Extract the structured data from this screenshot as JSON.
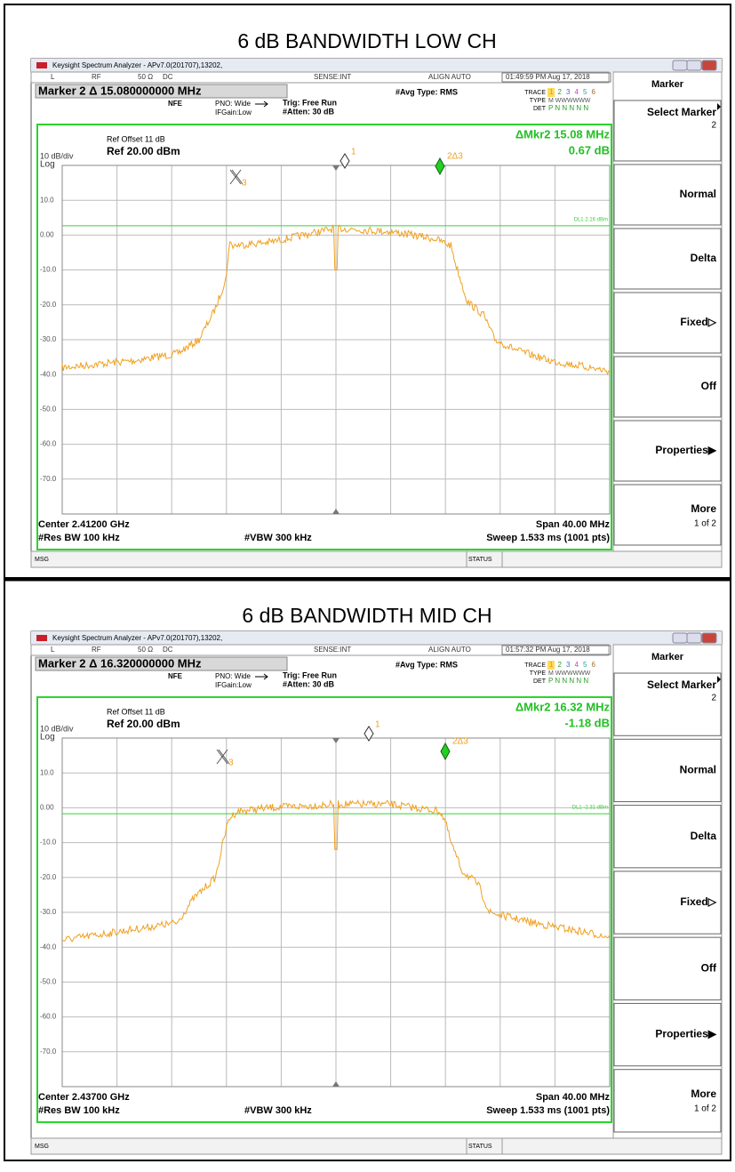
{
  "panels": [
    {
      "title": "6 dB BANDWIDTH LOW CH",
      "window_title": "Keysight Spectrum Analyzer - APv7.0(201707),13202,",
      "status_bar": [
        "L",
        "RF",
        "50 Ω",
        "DC",
        "SENSE:INT",
        "ALIGN AUTO",
        "01:49:59 PM Aug 17, 2018"
      ],
      "marker_readout": "Marker 2 Δ 15.080000000 MHz",
      "nfe": "NFE",
      "pno": "PNO: Wide",
      "ifgain": "IFGain:Low",
      "trig": "Trig: Free Run",
      "atten": "#Atten: 30 dB",
      "avg_type": "#Avg Type: RMS",
      "trace_info": {
        "trace_label": "TRACE",
        "trace_numbers": [
          "1",
          "2",
          "3",
          "4",
          "5",
          "6"
        ],
        "type_label": "TYPE",
        "type_value": "M WWWWWW",
        "det_label": "DET",
        "det_value": "P N N N N N"
      },
      "ref_offset": "Ref Offset 11 dB",
      "ref_level": "Ref 20.00 dBm",
      "scale": "10 dB/div",
      "scale_type": "Log",
      "delta_marker_freq": "ΔMkr2 15.08 MHz",
      "delta_marker_amp": "0.67 dB",
      "y_labels": [
        "10.0",
        "0.00",
        "-10.0",
        "-20.0",
        "-30.0",
        "-40.0",
        "-50.0",
        "-60.0",
        "-70.0"
      ],
      "display_line": "DL1 2.16 dBm",
      "marker_labels": [
        "1",
        "2Δ3",
        "3"
      ],
      "center": "Center 2.41200 GHz",
      "span": "Span 40.00 MHz",
      "res_bw": "#Res BW 100 kHz",
      "vbw": "#VBW 300 kHz",
      "sweep": "Sweep  1.533 ms (1001 pts)",
      "msg": "MSG",
      "status": "STATUS",
      "softkeys": {
        "header": "Marker",
        "keys": [
          "Select Marker",
          "Normal",
          "Delta",
          "Fixed▷",
          "Off",
          "Properties▶",
          "More"
        ],
        "select_value": "2",
        "more_page": "1 of 2"
      }
    },
    {
      "title": "6 dB BANDWIDTH MID CH",
      "window_title": "Keysight Spectrum Analyzer - APv7.0(201707),13202,",
      "status_bar": [
        "L",
        "RF",
        "50 Ω",
        "DC",
        "SENSE:INT",
        "ALIGN AUTO",
        "01:57:32 PM Aug 17, 2018"
      ],
      "marker_readout": "Marker 2 Δ 16.320000000 MHz",
      "nfe": "NFE",
      "pno": "PNO: Wide",
      "ifgain": "IFGain:Low",
      "trig": "Trig: Free Run",
      "atten": "#Atten: 30 dB",
      "avg_type": "#Avg Type: RMS",
      "trace_info": {
        "trace_label": "TRACE",
        "trace_numbers": [
          "1",
          "2",
          "3",
          "4",
          "5",
          "6"
        ],
        "type_label": "TYPE",
        "type_value": "M WWWWWW",
        "det_label": "DET",
        "det_value": "P N N N N N"
      },
      "ref_offset": "Ref Offset 11 dB",
      "ref_level": "Ref 20.00 dBm",
      "scale": "10 dB/div",
      "scale_type": "Log",
      "delta_marker_freq": "ΔMkr2 16.32 MHz",
      "delta_marker_amp": "-1.18 dB",
      "y_labels": [
        "10.0",
        "0.00",
        "-10.0",
        "-20.0",
        "-30.0",
        "-40.0",
        "-50.0",
        "-60.0",
        "-70.0"
      ],
      "display_line": "DL1 -2.31 dBm",
      "marker_labels": [
        "1",
        "2Δ3",
        "3"
      ],
      "center": "Center 2.43700 GHz",
      "span": "Span 40.00 MHz",
      "res_bw": "#Res BW 100 kHz",
      "vbw": "#VBW 300 kHz",
      "sweep": "Sweep  1.533 ms (1001 pts)",
      "msg": "MSG",
      "status": "STATUS",
      "softkeys": {
        "header": "Marker",
        "keys": [
          "Select Marker",
          "Normal",
          "Delta",
          "Fixed▷",
          "Off",
          "Properties▶",
          "More"
        ],
        "select_value": "2",
        "more_page": "1 of 2"
      }
    }
  ]
}
